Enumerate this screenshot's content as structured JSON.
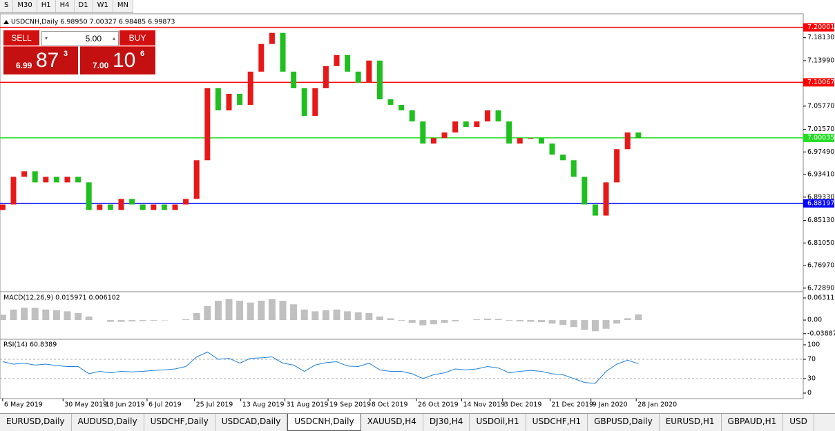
{
  "toolbar": {
    "buttons": [
      "S",
      "M30",
      "H1",
      "H4",
      "D1",
      "W1",
      "MN"
    ]
  },
  "symbol_header": "USDCNH,Daily  6.98950 7.00327 6.98485 6.99873",
  "trade_panel": {
    "sell": "SELL",
    "buy": "BUY",
    "lots": "5.00",
    "bid": {
      "big": "6.99",
      "main": "87",
      "small": "3"
    },
    "ask": {
      "big": "7.00",
      "main": "10",
      "small": "6"
    }
  },
  "chart_data": {
    "type": "candlestick",
    "open": [
      6.87,
      6.88,
      6.93,
      6.94,
      6.92,
      6.93,
      6.92,
      6.93,
      6.92,
      6.87,
      6.88,
      6.87,
      6.89,
      6.88,
      6.87,
      6.88,
      6.87,
      6.88,
      6.89,
      6.96,
      7.09,
      7.05,
      7.08,
      7.06,
      7.12,
      7.17,
      7.19,
      7.12,
      7.09,
      7.04,
      7.09,
      7.13,
      7.15,
      7.12,
      7.1,
      7.14,
      7.07,
      7.06,
      7.05,
      7.03,
      6.99,
      7.0,
      7.01,
      7.03,
      7.02,
      7.03,
      7.05,
      7.03,
      6.99,
      7.0,
      7.0,
      6.99,
      6.97,
      6.96,
      6.93,
      6.88,
      6.86,
      6.92,
      6.98,
      7.01
    ],
    "close": [
      6.88,
      6.93,
      6.94,
      6.92,
      6.93,
      6.92,
      6.93,
      6.92,
      6.87,
      6.88,
      6.87,
      6.89,
      6.88,
      6.87,
      6.88,
      6.87,
      6.88,
      6.89,
      6.96,
      7.09,
      7.05,
      7.08,
      7.06,
      7.12,
      7.17,
      7.19,
      7.12,
      7.09,
      7.04,
      7.09,
      7.13,
      7.15,
      7.12,
      7.1,
      7.14,
      7.07,
      7.06,
      7.05,
      7.03,
      6.99,
      7.0,
      7.01,
      7.03,
      7.02,
      7.03,
      7.05,
      7.03,
      6.99,
      7.0,
      7.0,
      6.99,
      6.97,
      6.96,
      6.93,
      6.88,
      6.86,
      6.92,
      6.98,
      7.01,
      7.0
    ],
    "up_color": "#e81818",
    "down_color": "#1fbf1f",
    "xlim": [
      -0.25,
      74.3
    ],
    "xticks": [
      {
        "value": 0,
        "label": "6 May 2019"
      },
      {
        "value": 5.6,
        "label": "30 May 2019"
      },
      {
        "value": 9.4,
        "label": "18 Jun 2019"
      },
      {
        "value": 13.4,
        "label": "6 Jul 2019"
      },
      {
        "value": 17.8,
        "label": "25 Jul 2019"
      },
      {
        "value": 22.1,
        "label": "13 Aug 2019"
      },
      {
        "value": 26.2,
        "label": "31 Aug 2019"
      },
      {
        "value": 30.2,
        "label": "19 Sep 2019"
      },
      {
        "value": 34.1,
        "label": "8 Oct 2019"
      },
      {
        "value": 38.4,
        "label": "26 Oct 2019"
      },
      {
        "value": 42.6,
        "label": "14 Nov 2019"
      },
      {
        "value": 46.4,
        "label": "3 Dec 2019"
      },
      {
        "value": 50.8,
        "label": "21 Dec 2019"
      },
      {
        "value": 54.6,
        "label": "9 Jan 2020"
      },
      {
        "value": 58.8,
        "label": "28 Jan 2020"
      }
    ],
    "ylim": [
      6.7237,
      7.2195
    ],
    "yticks": [
      {
        "value": 7.1813,
        "label": "7.18130"
      },
      {
        "value": 7.1399,
        "label": "7.13990"
      },
      {
        "value": 7.0577,
        "label": "7.05770"
      },
      {
        "value": 7.0157,
        "label": "7.01570"
      },
      {
        "value": 6.9749,
        "label": "6.97490"
      },
      {
        "value": 6.9341,
        "label": "6.93410"
      },
      {
        "value": 6.8933,
        "label": "6.89330"
      },
      {
        "value": 6.8513,
        "label": "6.85130"
      },
      {
        "value": 6.8105,
        "label": "6.81050"
      },
      {
        "value": 6.7697,
        "label": "6.76970"
      },
      {
        "value": 6.7289,
        "label": "6.72890"
      }
    ],
    "levels": [
      {
        "value": 7.20001,
        "color": "#ff0000"
      },
      {
        "value": 7.10067,
        "color": "#ff0000"
      },
      {
        "value": 7.00035,
        "color": "#22dd22"
      },
      {
        "value": 6.88197,
        "color": "#0000ff"
      }
    ],
    "macd": {
      "label": "MACD(12,26,9) 0.015971 0.006102",
      "color": "#c0c0c0",
      "ylim": [
        -0.053,
        0.077
      ],
      "yticks": [
        0.063113,
        {
          "value": 0,
          "label": "0.00"
        },
        -0.038872
      ],
      "values": [
        0.015,
        0.03,
        0.035,
        0.035,
        0.03,
        0.028,
        0.025,
        0.02,
        0.01,
        0,
        -0.005,
        -0.005,
        -0.004,
        -0.003,
        -0.002,
        -0.001,
        0,
        0.002,
        0.02,
        0.04,
        0.055,
        0.06,
        0.055,
        0.05,
        0.055,
        0.06,
        0.055,
        0.045,
        0.03,
        0.025,
        0.028,
        0.03,
        0.025,
        0.022,
        0.02,
        0.01,
        0.005,
        -0.002,
        -0.008,
        -0.015,
        -0.012,
        -0.008,
        -0.004,
        0,
        0.002,
        0.004,
        0.003,
        -0.002,
        -0.004,
        -0.005,
        -0.006,
        -0.01,
        -0.014,
        -0.02,
        -0.028,
        -0.032,
        -0.025,
        -0.01,
        0.005,
        0.016
      ]
    },
    "rsi": {
      "label": "RSI(14) 60.8389",
      "color": "#1e7fd8",
      "ylim": [
        -10,
        110
      ],
      "yticks": [
        100,
        70,
        30,
        0
      ],
      "levels": [
        70,
        30
      ],
      "values": [
        65,
        60,
        62,
        58,
        60,
        57,
        55,
        55,
        40,
        45,
        42,
        45,
        44,
        45,
        47,
        48,
        50,
        55,
        75,
        85,
        70,
        72,
        62,
        72,
        73,
        75,
        62,
        58,
        45,
        58,
        63,
        65,
        56,
        55,
        62,
        48,
        45,
        45,
        40,
        30,
        38,
        42,
        50,
        48,
        50,
        55,
        52,
        42,
        45,
        47,
        45,
        40,
        38,
        30,
        22,
        20,
        45,
        60,
        68,
        61
      ]
    }
  },
  "tabs": {
    "items": [
      "EURUSD,Daily",
      "AUDUSD,Daily",
      "USDCHF,Daily",
      "USDCAD,Daily",
      "USDCNH,Daily",
      "XAUUSD,H4",
      "DJ30,H4",
      "USDOil,H1",
      "USDCHF,H1",
      "GBPUSD,Daily",
      "EURUSD,H1",
      "GBPAUD,H1",
      "USD"
    ],
    "active": 4
  }
}
